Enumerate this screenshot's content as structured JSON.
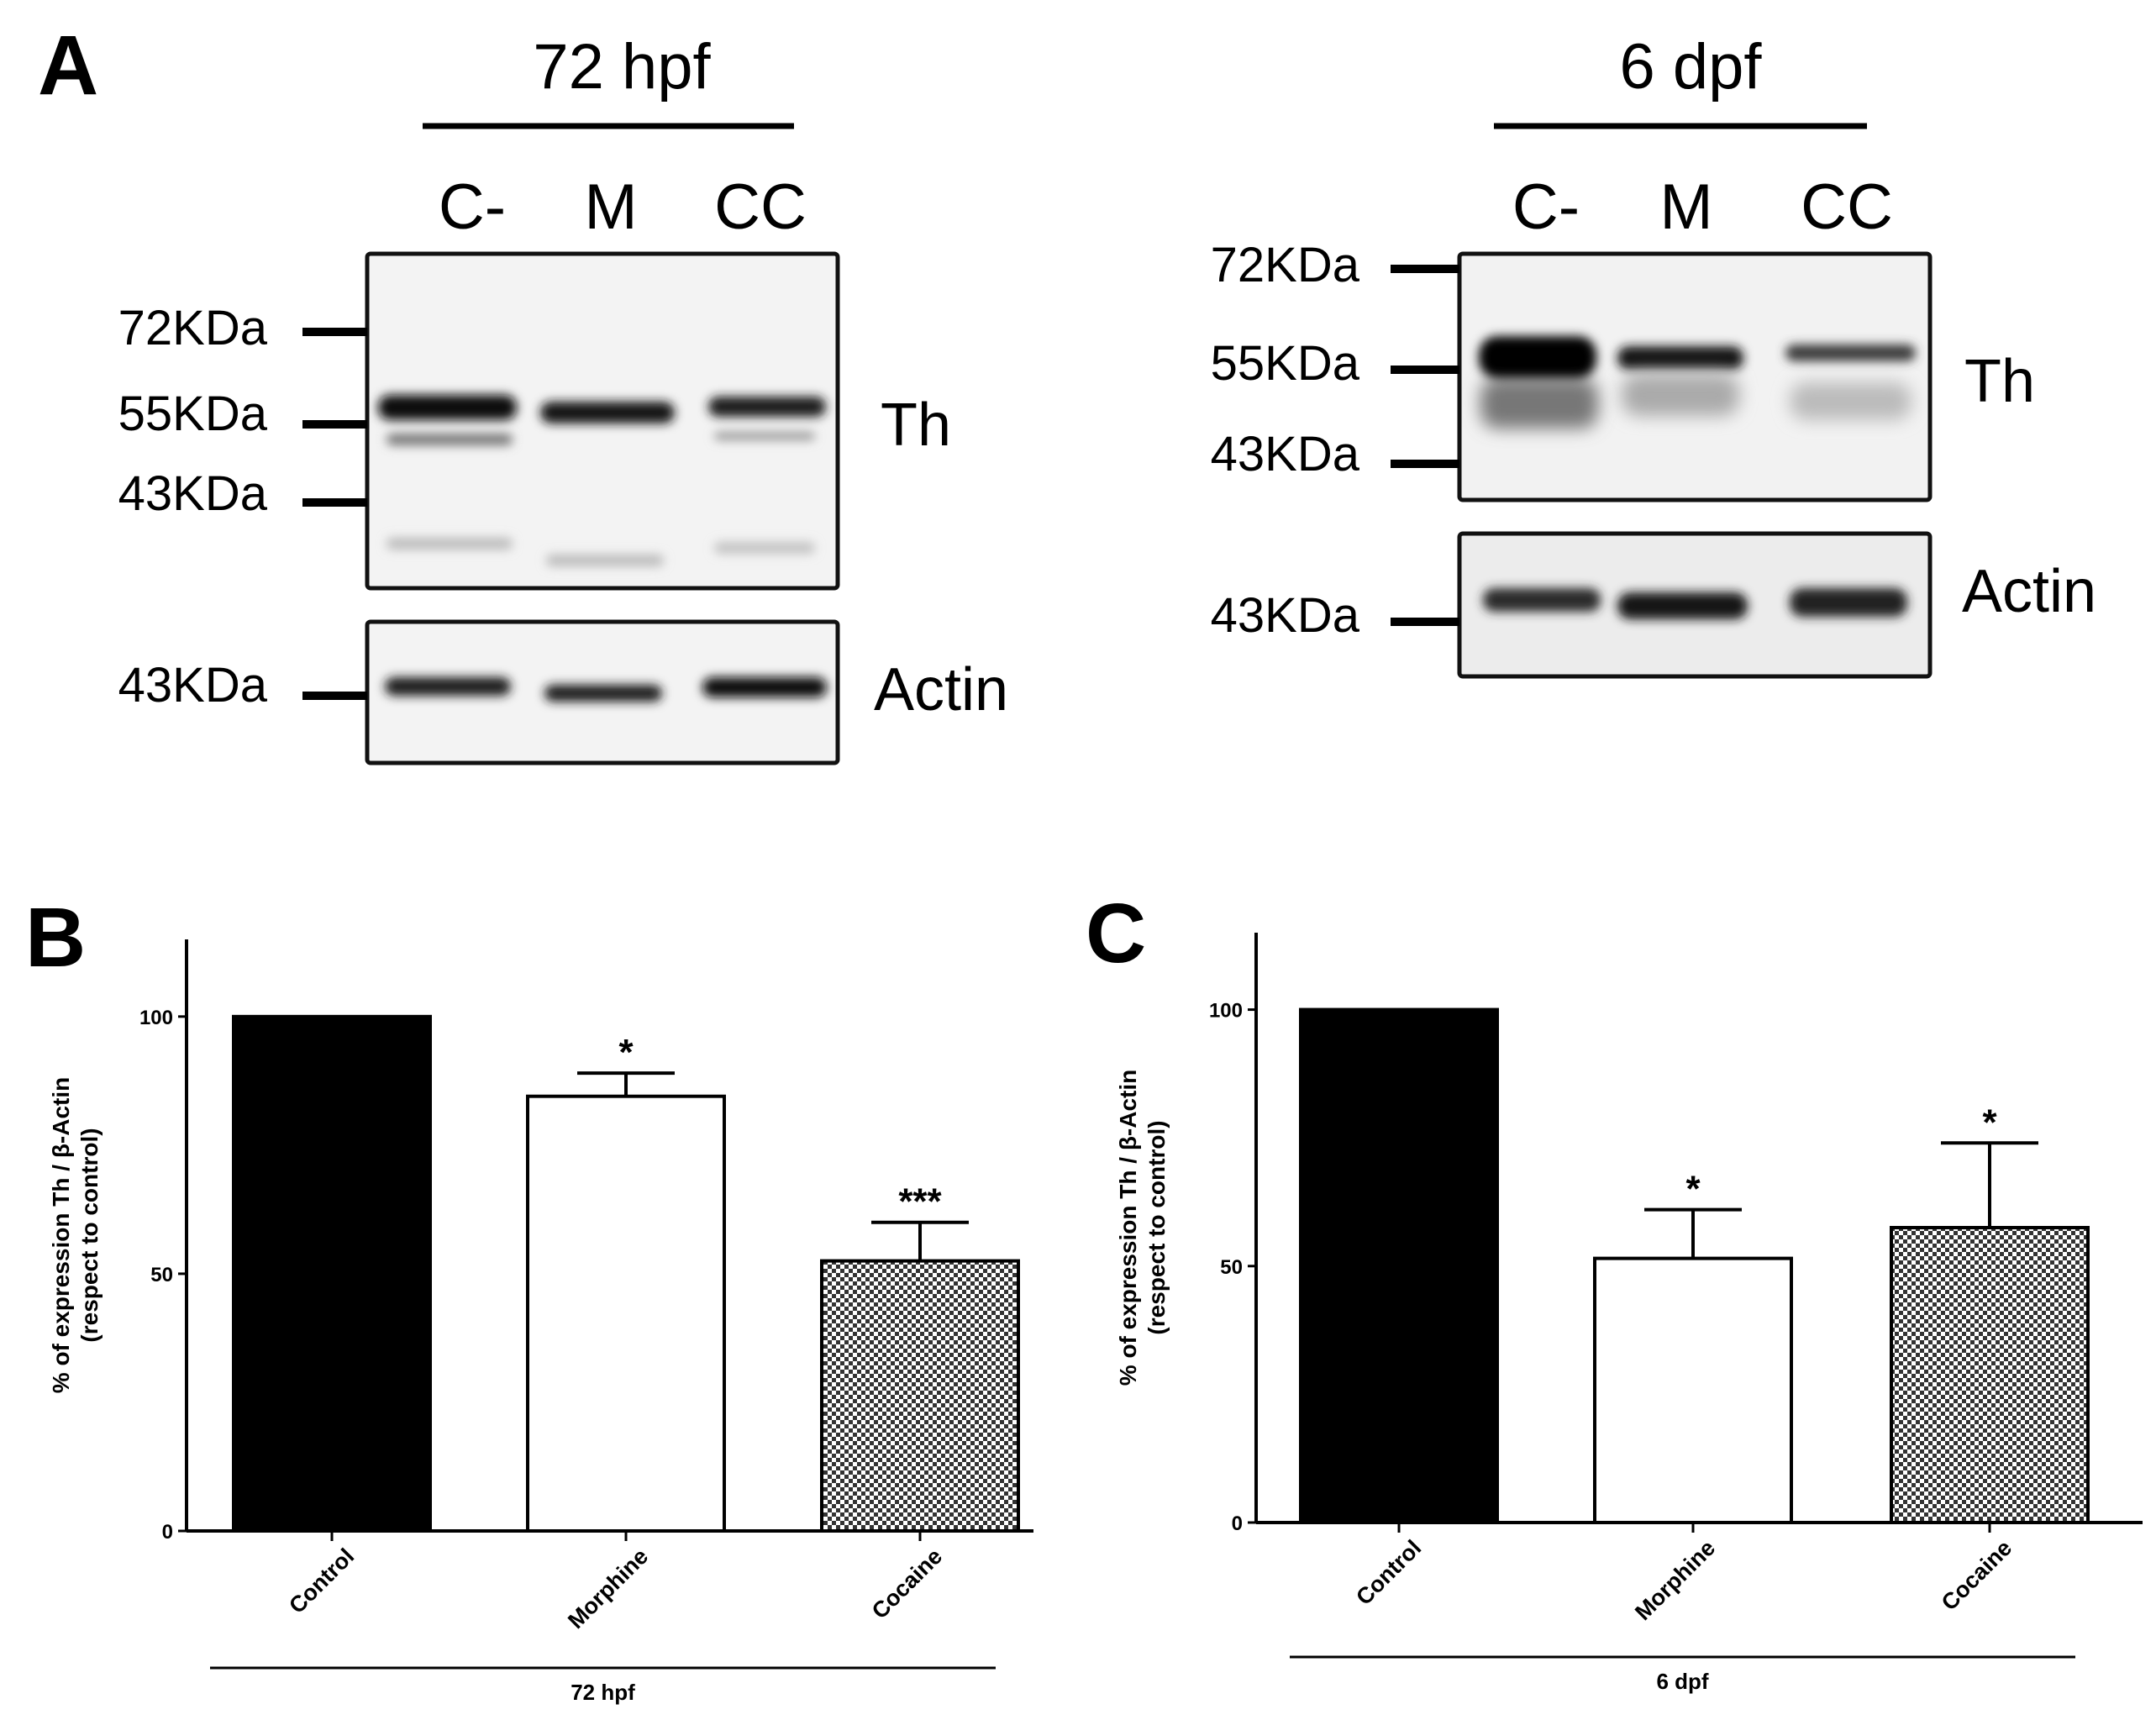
{
  "panels": {
    "A": {
      "letter": "A",
      "left": {
        "time": "72 hpf",
        "lanes": [
          "C-",
          "M",
          "CC"
        ],
        "th_markers": [
          "72KDa",
          "55KDa",
          "43KDa"
        ],
        "actin_marker": "43KDa",
        "th_label": "Th",
        "actin_label": "Actin"
      },
      "right": {
        "time": "6 dpf",
        "lanes": [
          "C-",
          "M",
          "CC"
        ],
        "th_markers": [
          "72KDa",
          "55KDa",
          "43KDa"
        ],
        "actin_marker": "43KDa",
        "th_label": "Th",
        "actin_label": "Actin"
      }
    },
    "B": {
      "letter": "B"
    },
    "C": {
      "letter": "C"
    }
  },
  "chart_data": [
    {
      "type": "bar",
      "panel": "B",
      "categories": [
        "Control",
        "Morphine",
        "Cocaine"
      ],
      "values": [
        100,
        84.5,
        52.5
      ],
      "errors": [
        0,
        4.5,
        7.5
      ],
      "significance": [
        "",
        "*",
        "***"
      ],
      "fills": [
        "solid-black",
        "white",
        "checkered"
      ],
      "ylabel_line1": "% of expression Th / β-Actin",
      "ylabel_line2": "(respect to control)",
      "group_label": "72 hpf",
      "ylim": [
        0,
        115
      ],
      "yticks": [
        0,
        50,
        100
      ],
      "grid": false
    },
    {
      "type": "bar",
      "panel": "C",
      "categories": [
        "Control",
        "Morphine",
        "Cocaine"
      ],
      "values": [
        100,
        51.5,
        57.5
      ],
      "errors": [
        0,
        9.5,
        16.5
      ],
      "significance": [
        "",
        "*",
        "*"
      ],
      "fills": [
        "solid-black",
        "white",
        "checkered"
      ],
      "ylabel_line1": "% of expression Th / β-Actin",
      "ylabel_line2": "(respect to control)",
      "group_label": "6 dpf",
      "ylim": [
        0,
        115
      ],
      "yticks": [
        0,
        50,
        100
      ],
      "grid": false
    }
  ],
  "colors": {
    "ink": "#000000",
    "blot_bg": "#f2f2f2",
    "band": "#111111"
  }
}
